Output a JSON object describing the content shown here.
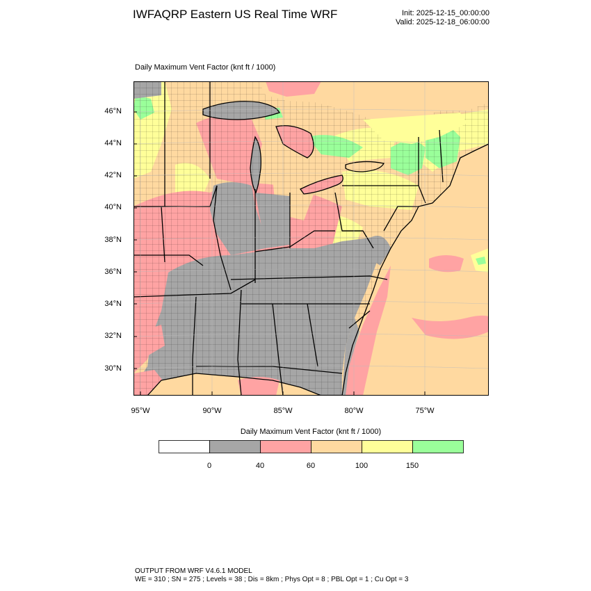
{
  "header": {
    "title": "IWFAQRP Eastern US Real Time WRF",
    "init": "Init: 2025-12-15_00:00:00",
    "valid": "Valid: 2025-12-18_06:00:00"
  },
  "map": {
    "subtitle": "Daily Maximum Vent Factor   (knt ft / 1000)",
    "lat_labels": [
      "46°N",
      "44°N",
      "42°N",
      "40°N",
      "38°N",
      "36°N",
      "34°N",
      "32°N",
      "30°N"
    ],
    "lon_labels": [
      "95°W",
      "90°W",
      "85°W",
      "80°W",
      "75°W"
    ]
  },
  "colorbar": {
    "title": "Daily Maximum Vent Factor  (knt ft / 1000)",
    "labels": [
      "0",
      "40",
      "60",
      "100",
      "150"
    ],
    "colors": [
      "#ffffff",
      "#a6a6a6",
      "#ffa3a3",
      "#ffd9a0",
      "#ffff99",
      "#9aff9a"
    ]
  },
  "footer": {
    "line1": "OUTPUT FROM WRF V4.6.1 MODEL",
    "line2": "WE = 310 ; SN = 275 ; Levels = 38 ; Dis = 8km ; Phys Opt = 8 ; PBL Opt = 1 ; Cu Opt = 3"
  }
}
